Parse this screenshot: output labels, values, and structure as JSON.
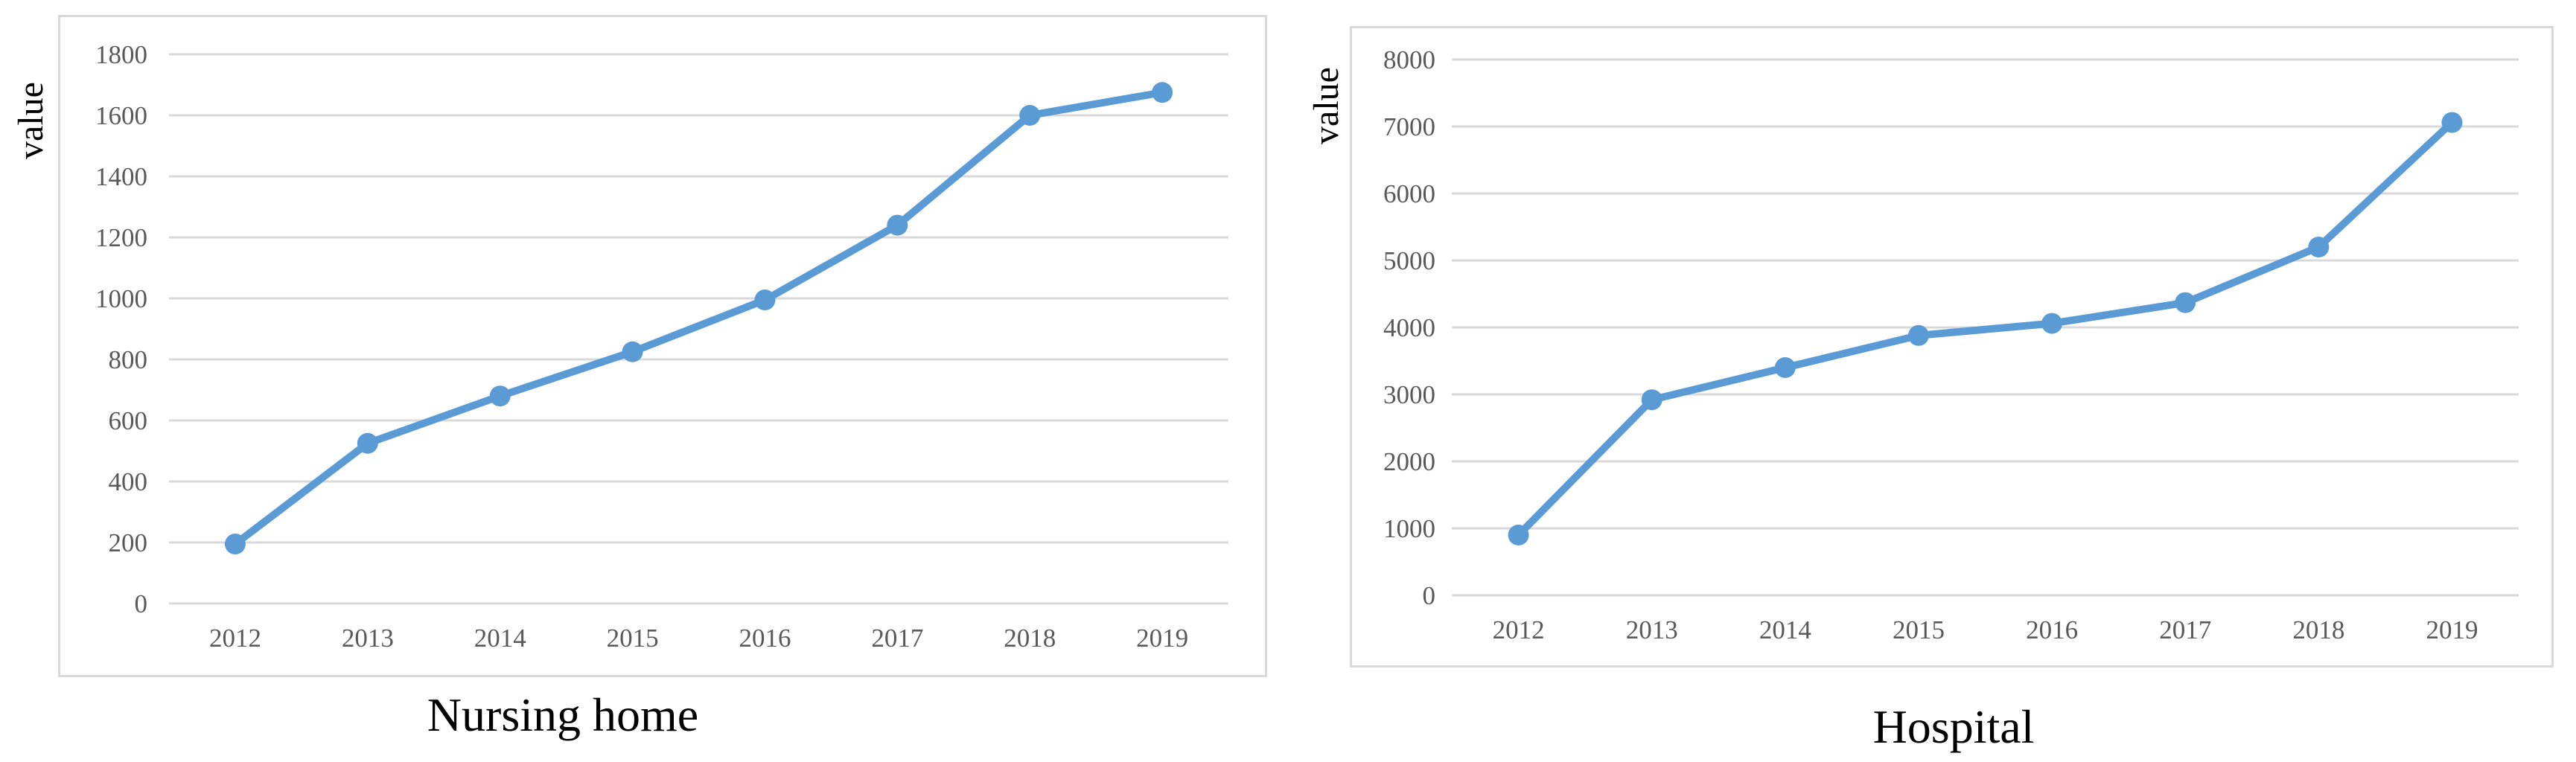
{
  "page": {
    "background": "#ffffff"
  },
  "chart_data": [
    {
      "type": "line",
      "title": "Nursing home",
      "ylabel": "value",
      "xlabel": "",
      "categories": [
        "2012",
        "2013",
        "2014",
        "2015",
        "2016",
        "2017",
        "2018",
        "2019"
      ],
      "values": [
        195,
        525,
        680,
        825,
        995,
        1240,
        1600,
        1675
      ],
      "ylim": [
        0,
        1800
      ],
      "ytick_step": 200,
      "yticks": [
        "0",
        "200",
        "400",
        "600",
        "800",
        "1000",
        "1200",
        "1400",
        "1600",
        "1800"
      ],
      "grid": true,
      "legend": "none",
      "line_color": "#5B9BD5",
      "marker_color": "#5B9BD5",
      "gridline_color": "#d9d9d9",
      "tick_color": "#595959",
      "title_color": "#000000"
    },
    {
      "type": "line",
      "title": "Hospital",
      "ylabel": "value",
      "xlabel": "",
      "categories": [
        "2012",
        "2013",
        "2014",
        "2015",
        "2016",
        "2017",
        "2018",
        "2019"
      ],
      "values": [
        900,
        2920,
        3400,
        3880,
        4060,
        4370,
        5200,
        7060
      ],
      "ylim": [
        0,
        8000
      ],
      "ytick_step": 1000,
      "yticks": [
        "0",
        "1000",
        "2000",
        "3000",
        "4000",
        "5000",
        "6000",
        "7000",
        "8000"
      ],
      "grid": true,
      "legend": "none",
      "line_color": "#5B9BD5",
      "marker_color": "#5B9BD5",
      "gridline_color": "#d9d9d9",
      "tick_color": "#595959",
      "title_color": "#000000"
    }
  ]
}
